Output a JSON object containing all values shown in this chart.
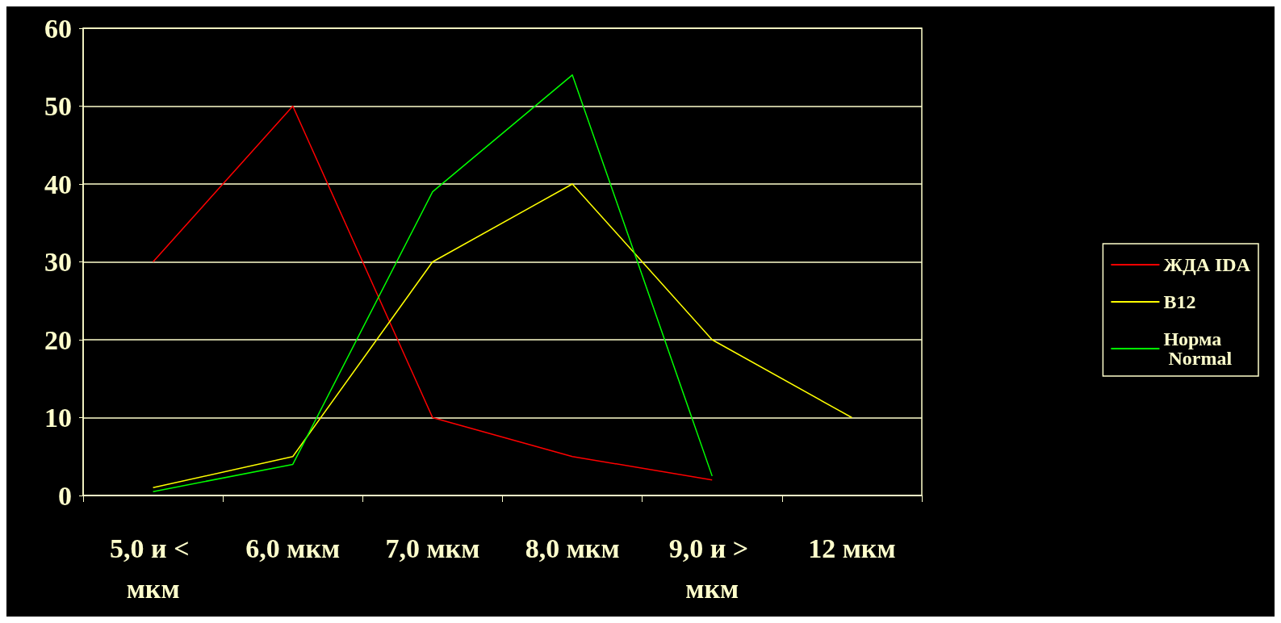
{
  "chart_data": {
    "type": "line",
    "categories": [
      "5,0 и < мкм",
      "6,0 мкм",
      "7,0 мкм",
      "8,0 мкм",
      "9,0 и > мкм",
      "12 мкм"
    ],
    "series": [
      {
        "name": "ЖДА IDA",
        "color": "#ff0000",
        "values": [
          30,
          50,
          10,
          5,
          2,
          null
        ]
      },
      {
        "name": "B12",
        "color": "#ffff00",
        "values": [
          1,
          5,
          30,
          40,
          20,
          10
        ]
      },
      {
        "name": "Норма Normal",
        "color": "#00ff00",
        "values": [
          0.5,
          4,
          39,
          54,
          2.5,
          null
        ]
      }
    ],
    "ylim": [
      0,
      60
    ],
    "yticks": [
      0,
      10,
      20,
      30,
      40,
      50,
      60
    ],
    "grid": "y",
    "legend": "right",
    "marker": "none",
    "line_style": "solid"
  }
}
